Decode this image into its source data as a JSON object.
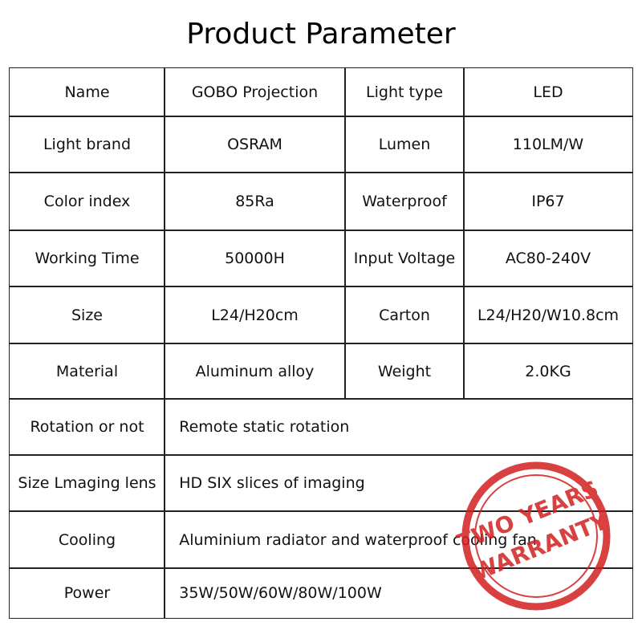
{
  "title": "Product Parameter",
  "table": {
    "rows": [
      [
        "Name",
        "GOBO Projection",
        "Light type",
        "LED"
      ],
      [
        "Light brand",
        "OSRAM",
        "Lumen",
        "110LM/W"
      ],
      [
        "Color index",
        "85Ra",
        "Waterproof",
        "IP67"
      ],
      [
        "Working Time",
        "50000H",
        "Input Voltage",
        "AC80-240V"
      ],
      [
        "Size",
        "L24/H20cm",
        "Carton",
        "L24/H20/W10.8cm"
      ],
      [
        "Material",
        "Aluminum alloy",
        "Weight",
        "2.0KG"
      ],
      [
        "Rotation or not",
        "Remote static rotation"
      ],
      [
        "Size Lmaging lens",
        "HD SIX slices of imaging"
      ],
      [
        "Cooling",
        "Aluminium radiator and waterproof cooling fan"
      ],
      [
        "Power",
        "35W/50W/60W/80W/100W"
      ]
    ]
  },
  "stamp": {
    "lines": [
      "TWO YEARS",
      "WARRANTY"
    ]
  }
}
